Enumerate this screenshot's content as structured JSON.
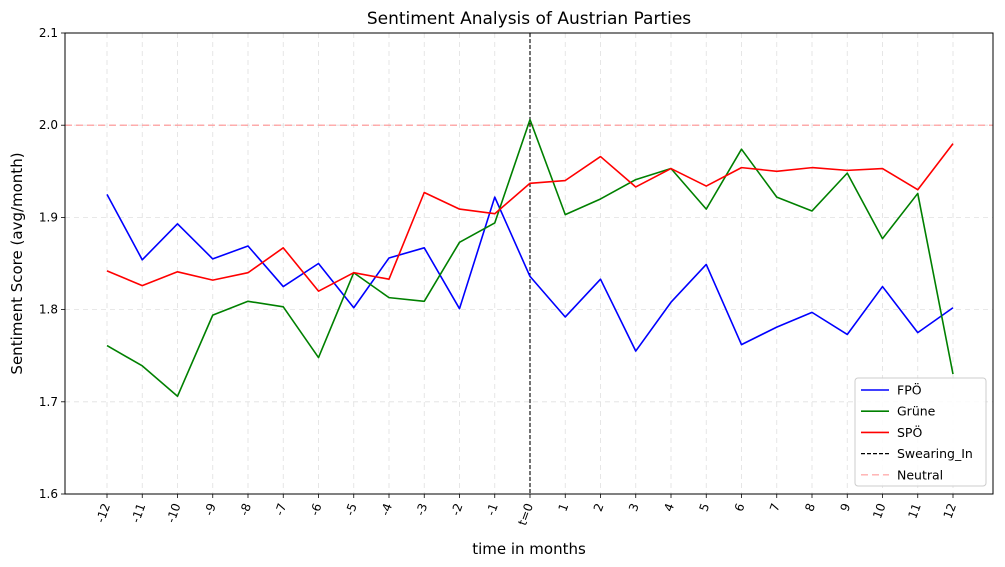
{
  "chart_data": {
    "type": "line",
    "title": "Sentiment Analysis of Austrian Parties",
    "xlabel": "time in months",
    "ylabel": "Sentiment Score (avg/month)",
    "categories": [
      "-12",
      "-11",
      "-10",
      "-9",
      "-8",
      "-7",
      "-6",
      "-5",
      "-4",
      "-3",
      "-2",
      "-1",
      "t=0",
      "1",
      "2",
      "3",
      "4",
      "5",
      "6",
      "7",
      "8",
      "9",
      "10",
      "11",
      "12"
    ],
    "ylim": [
      1.6,
      2.1
    ],
    "yticks": [
      "1.6",
      "1.7",
      "1.8",
      "1.9",
      "2.0",
      "2.1"
    ],
    "grid": true,
    "legend_position": "lower-right",
    "series": [
      {
        "name": "FPÖ",
        "color": "#0000ff",
        "values": [
          1.925,
          1.854,
          1.893,
          1.855,
          1.869,
          1.825,
          1.85,
          1.802,
          1.856,
          1.867,
          1.801,
          1.922,
          1.836,
          1.792,
          1.833,
          1.755,
          1.808,
          1.849,
          1.762,
          1.781,
          1.797,
          1.773,
          1.825,
          1.775,
          1.802
        ]
      },
      {
        "name": "Grüne",
        "color": "#008000",
        "values": [
          1.761,
          1.739,
          1.706,
          1.794,
          1.809,
          1.803,
          1.748,
          1.84,
          1.813,
          1.809,
          1.873,
          1.894,
          2.006,
          1.903,
          1.92,
          1.941,
          1.953,
          1.909,
          1.974,
          1.922,
          1.907,
          1.948,
          1.877,
          1.926,
          1.73
        ]
      },
      {
        "name": "SPÖ",
        "color": "#ff0000",
        "values": [
          1.842,
          1.826,
          1.841,
          1.832,
          1.84,
          1.867,
          1.82,
          1.84,
          1.833,
          1.927,
          1.909,
          1.904,
          1.937,
          1.94,
          1.966,
          1.933,
          1.953,
          1.934,
          1.954,
          1.95,
          1.954,
          1.951,
          1.953,
          1.93,
          1.98
        ]
      }
    ],
    "vline": {
      "name": "Swearing_In",
      "x": "t=0",
      "color": "#000000"
    },
    "hline": {
      "name": "Neutral",
      "y": 2.0,
      "color": "#ff9999"
    }
  }
}
